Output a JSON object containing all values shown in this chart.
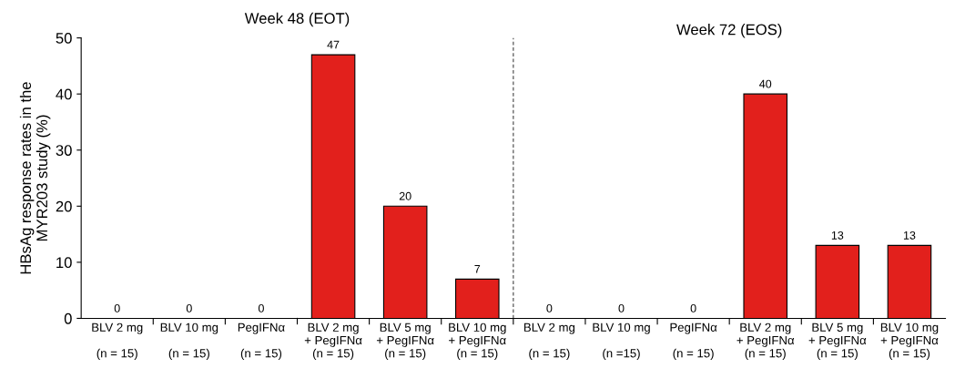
{
  "chart_data": {
    "type": "bar",
    "ylabel": "HBsAg response rates in the\nMYR203 study (%)",
    "categories": [
      "BLV 2 mg\n\n(n = 15)",
      "BLV 10 mg\n\n(n = 15)",
      "PegIFNα\n\n(n = 15)",
      "BLV 2 mg\n+ PegIFNα\n(n = 15)",
      "BLV 5 mg\n+ PegIFNα\n(n = 15)",
      "BLV 10 mg\n+ PegIFNα\n(n = 15)",
      "BLV 2 mg\n\n(n = 15)",
      "BLV 10 mg\n\n(n =15)",
      "PegIFNα\n\n(n = 15)",
      "BLV 2 mg\n+ PegIFNα\n(n = 15)",
      "BLV 5 mg\n+ PegIFNα\n(n = 15)",
      "BLV 10 mg\n+ PegIFNα\n(n = 15)"
    ],
    "values": [
      0,
      0,
      0,
      47,
      20,
      7,
      0,
      0,
      0,
      40,
      13,
      13
    ],
    "color": "#e2201c",
    "data_labels": true,
    "ylim": [
      0,
      50
    ],
    "yticks": [
      0,
      10,
      20,
      30,
      40,
      50
    ],
    "grid": false,
    "legend": false,
    "annotations": [
      "Week 48 (EOT)",
      "Week 72 (EOS)"
    ]
  }
}
